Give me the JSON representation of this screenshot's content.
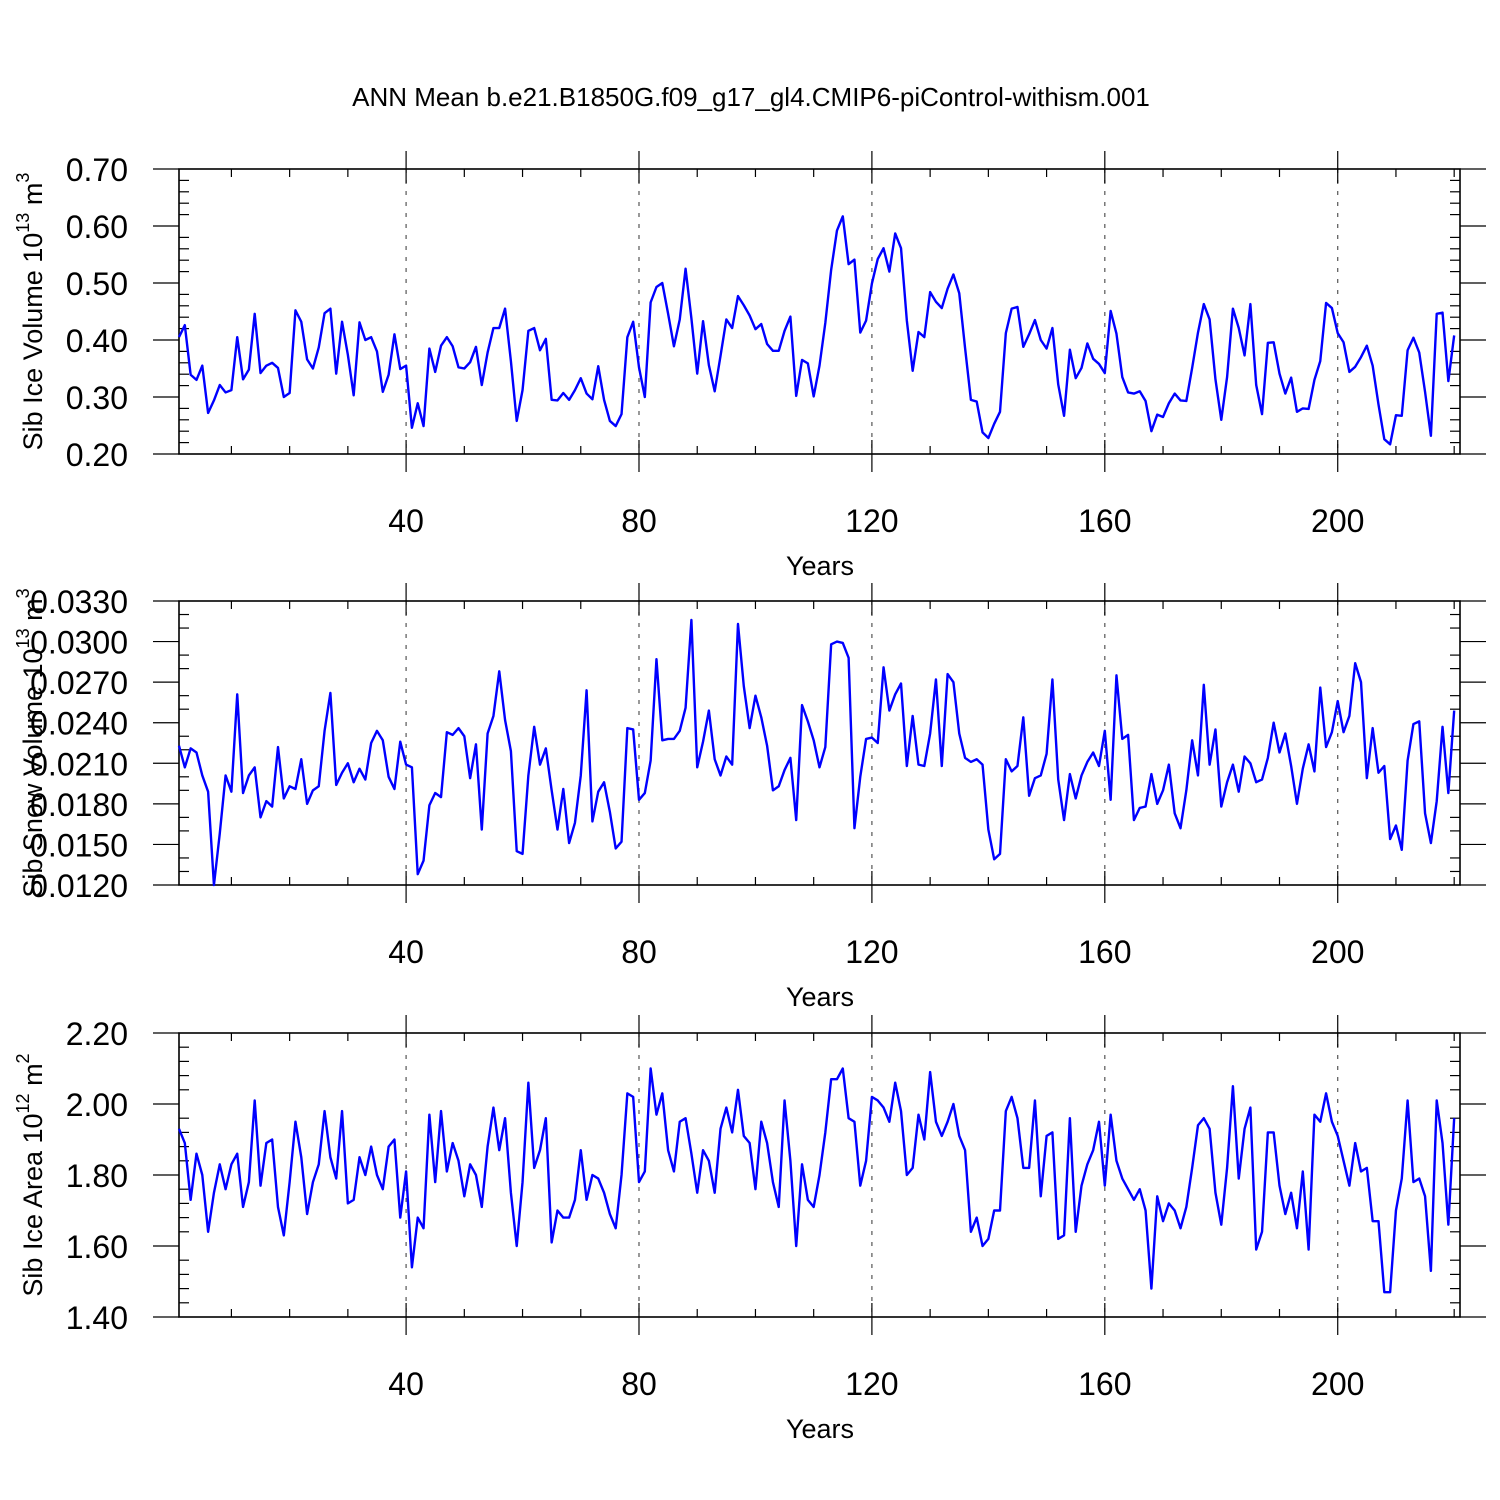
{
  "title": "ANN Mean b.e21.B1850G.f09_g17_gl4.CMIP6-piControl-withism.001",
  "chart_data": [
    {
      "type": "line",
      "ylabel": "Sib Ice Volume 10",
      "ylabel_exp": "13",
      "ylabel_unit": " m",
      "ylabel_unit_exp": "3",
      "xlabel": "Years",
      "xlim": [
        1,
        221
      ],
      "ylim": [
        0.2,
        0.7
      ],
      "xticks": [
        40,
        80,
        120,
        160,
        200
      ],
      "yticks": [
        "0.20",
        "0.30",
        "0.40",
        "0.50",
        "0.60",
        "0.70"
      ],
      "grid": "dashed vertical at labeled x ticks",
      "series": [
        {
          "color": "#0000ff",
          "values": [
            0.405,
            0.426,
            0.339,
            0.33,
            0.355,
            0.272,
            0.294,
            0.321,
            0.308,
            0.312,
            0.405,
            0.331,
            0.348,
            0.446,
            0.342,
            0.355,
            0.36,
            0.351,
            0.3,
            0.307,
            0.452,
            0.432,
            0.366,
            0.35,
            0.387,
            0.447,
            0.455,
            0.341,
            0.432,
            0.374,
            0.303,
            0.431,
            0.4,
            0.405,
            0.38,
            0.309,
            0.339,
            0.41,
            0.349,
            0.355,
            0.246,
            0.289,
            0.249,
            0.385,
            0.344,
            0.39,
            0.405,
            0.389,
            0.352,
            0.35,
            0.361,
            0.388,
            0.321,
            0.378,
            0.421,
            0.421,
            0.455,
            0.363,
            0.258,
            0.312,
            0.416,
            0.421,
            0.382,
            0.402,
            0.295,
            0.294,
            0.307,
            0.295,
            0.312,
            0.333,
            0.306,
            0.296,
            0.354,
            0.295,
            0.258,
            0.249,
            0.27,
            0.405,
            0.432,
            0.352,
            0.3,
            0.466,
            0.493,
            0.5,
            0.446,
            0.389,
            0.436,
            0.525,
            0.438,
            0.341,
            0.433,
            0.356,
            0.31,
            0.372,
            0.436,
            0.421,
            0.477,
            0.461,
            0.443,
            0.419,
            0.428,
            0.393,
            0.381,
            0.381,
            0.416,
            0.441,
            0.302,
            0.365,
            0.359,
            0.301,
            0.355,
            0.43,
            0.523,
            0.592,
            0.617,
            0.533,
            0.541,
            0.413,
            0.434,
            0.499,
            0.542,
            0.561,
            0.52,
            0.587,
            0.561,
            0.434,
            0.346,
            0.414,
            0.405,
            0.484,
            0.467,
            0.456,
            0.49,
            0.515,
            0.482,
            0.386,
            0.295,
            0.292,
            0.238,
            0.228,
            0.253,
            0.274,
            0.412,
            0.455,
            0.458,
            0.388,
            0.41,
            0.435,
            0.4,
            0.385,
            0.421,
            0.322,
            0.267,
            0.383,
            0.333,
            0.351,
            0.394,
            0.367,
            0.358,
            0.342,
            0.451,
            0.411,
            0.335,
            0.308,
            0.306,
            0.31,
            0.293,
            0.24,
            0.269,
            0.265,
            0.289,
            0.306,
            0.294,
            0.293,
            0.351,
            0.413,
            0.463,
            0.436,
            0.331,
            0.26,
            0.335,
            0.455,
            0.421,
            0.373,
            0.463,
            0.321,
            0.27,
            0.395,
            0.396,
            0.341,
            0.306,
            0.334,
            0.274,
            0.28,
            0.279,
            0.33,
            0.363,
            0.465,
            0.456,
            0.412,
            0.396,
            0.344,
            0.353,
            0.37,
            0.39,
            0.355,
            0.287,
            0.226,
            0.217,
            0.268,
            0.267,
            0.382,
            0.404,
            0.378,
            0.309,
            0.232,
            0.446,
            0.448,
            0.328,
            0.408
          ]
        }
      ]
    },
    {
      "type": "line",
      "ylabel": "Sib Snow Volume 10",
      "ylabel_exp": "13",
      "ylabel_unit": " m",
      "ylabel_unit_exp": "3",
      "xlabel": "Years",
      "xlim": [
        1,
        221
      ],
      "ylim": [
        0.012,
        0.033
      ],
      "xticks": [
        40,
        80,
        120,
        160,
        200
      ],
      "yticks": [
        "0.0120",
        "0.0150",
        "0.0180",
        "0.0210",
        "0.0240",
        "0.0270",
        "0.0300",
        "0.0330"
      ],
      "grid": "dashed vertical at labeled x ticks",
      "series": [
        {
          "color": "#0000ff",
          "values": [
            0.0223,
            0.0207,
            0.0221,
            0.0218,
            0.0201,
            0.0189,
            0.012,
            0.0158,
            0.0201,
            0.0189,
            0.0261,
            0.0188,
            0.0201,
            0.0207,
            0.017,
            0.0182,
            0.0178,
            0.0222,
            0.0184,
            0.0193,
            0.0191,
            0.0213,
            0.018,
            0.019,
            0.0193,
            0.0234,
            0.0262,
            0.0194,
            0.0203,
            0.021,
            0.0196,
            0.0206,
            0.0198,
            0.0225,
            0.0234,
            0.0227,
            0.02,
            0.0191,
            0.0226,
            0.0209,
            0.0207,
            0.0128,
            0.0138,
            0.0179,
            0.0188,
            0.0185,
            0.0233,
            0.0231,
            0.0236,
            0.023,
            0.0199,
            0.0224,
            0.0161,
            0.0232,
            0.0245,
            0.0278,
            0.0242,
            0.0219,
            0.0145,
            0.0143,
            0.0201,
            0.0237,
            0.0209,
            0.0221,
            0.019,
            0.0161,
            0.0191,
            0.0151,
            0.0166,
            0.0201,
            0.0264,
            0.0167,
            0.0189,
            0.0196,
            0.0174,
            0.0147,
            0.0152,
            0.0236,
            0.0235,
            0.0183,
            0.0188,
            0.0212,
            0.0287,
            0.0227,
            0.0228,
            0.0228,
            0.0234,
            0.0251,
            0.0316,
            0.0207,
            0.0226,
            0.0249,
            0.0213,
            0.0201,
            0.0215,
            0.0209,
            0.0313,
            0.0267,
            0.0236,
            0.026,
            0.0244,
            0.0223,
            0.019,
            0.0193,
            0.0205,
            0.0214,
            0.0168,
            0.0253,
            0.0241,
            0.0227,
            0.0207,
            0.0222,
            0.0298,
            0.03,
            0.0299,
            0.0288,
            0.0162,
            0.02,
            0.0228,
            0.0229,
            0.0225,
            0.0281,
            0.0249,
            0.0261,
            0.0269,
            0.0208,
            0.0245,
            0.0209,
            0.0208,
            0.0232,
            0.0272,
            0.0208,
            0.0276,
            0.027,
            0.0232,
            0.0214,
            0.0211,
            0.0213,
            0.0209,
            0.0161,
            0.0139,
            0.0143,
            0.0213,
            0.0204,
            0.0208,
            0.0244,
            0.0186,
            0.0199,
            0.0201,
            0.0217,
            0.0272,
            0.0198,
            0.0168,
            0.0202,
            0.0184,
            0.0201,
            0.0211,
            0.0218,
            0.0208,
            0.0234,
            0.0183,
            0.0275,
            0.0228,
            0.0231,
            0.0168,
            0.0177,
            0.0178,
            0.0202,
            0.018,
            0.019,
            0.0209,
            0.0173,
            0.0162,
            0.019,
            0.0227,
            0.0201,
            0.0268,
            0.0209,
            0.0235,
            0.0178,
            0.0196,
            0.0209,
            0.0189,
            0.0215,
            0.021,
            0.0196,
            0.0198,
            0.0214,
            0.024,
            0.0218,
            0.0232,
            0.0208,
            0.018,
            0.0206,
            0.0224,
            0.0204,
            0.0266,
            0.0222,
            0.0233,
            0.0256,
            0.0233,
            0.0245,
            0.0284,
            0.027,
            0.0199,
            0.0236,
            0.0203,
            0.0208,
            0.0154,
            0.0164,
            0.0146,
            0.0212,
            0.0239,
            0.0241,
            0.0173,
            0.0151,
            0.0182,
            0.0237,
            0.0188,
            0.0249
          ]
        }
      ]
    },
    {
      "type": "line",
      "ylabel": "Sib Ice Area 10",
      "ylabel_exp": "12",
      "ylabel_unit": " m",
      "ylabel_unit_exp": "2",
      "xlabel": "Years",
      "xlim": [
        1,
        221
      ],
      "ylim": [
        1.4,
        2.2
      ],
      "xticks": [
        40,
        80,
        120,
        160,
        200
      ],
      "yticks": [
        "1.40",
        "1.60",
        "1.80",
        "2.00",
        "2.20"
      ],
      "grid": "dashed vertical at labeled x ticks",
      "series": [
        {
          "color": "#0000ff",
          "values": [
            1.93,
            1.89,
            1.73,
            1.86,
            1.8,
            1.64,
            1.75,
            1.83,
            1.76,
            1.83,
            1.86,
            1.71,
            1.78,
            2.01,
            1.77,
            1.89,
            1.9,
            1.71,
            1.63,
            1.78,
            1.95,
            1.85,
            1.69,
            1.78,
            1.83,
            1.98,
            1.85,
            1.79,
            1.98,
            1.72,
            1.73,
            1.85,
            1.8,
            1.88,
            1.8,
            1.76,
            1.88,
            1.9,
            1.68,
            1.81,
            1.54,
            1.68,
            1.65,
            1.97,
            1.78,
            1.98,
            1.81,
            1.89,
            1.84,
            1.74,
            1.83,
            1.8,
            1.71,
            1.88,
            1.99,
            1.87,
            1.96,
            1.75,
            1.6,
            1.78,
            2.06,
            1.82,
            1.87,
            1.96,
            1.61,
            1.7,
            1.68,
            1.68,
            1.73,
            1.87,
            1.73,
            1.8,
            1.79,
            1.75,
            1.69,
            1.65,
            1.8,
            2.03,
            2.02,
            1.78,
            1.81,
            2.1,
            1.97,
            2.03,
            1.87,
            1.81,
            1.95,
            1.96,
            1.86,
            1.75,
            1.87,
            1.84,
            1.75,
            1.93,
            1.99,
            1.92,
            2.04,
            1.91,
            1.89,
            1.76,
            1.95,
            1.89,
            1.78,
            1.71,
            2.01,
            1.84,
            1.6,
            1.83,
            1.73,
            1.71,
            1.8,
            1.92,
            2.07,
            2.07,
            2.1,
            1.96,
            1.95,
            1.77,
            1.84,
            2.02,
            2.01,
            1.99,
            1.95,
            2.06,
            1.98,
            1.8,
            1.82,
            1.97,
            1.9,
            2.09,
            1.95,
            1.91,
            1.95,
            2.0,
            1.91,
            1.87,
            1.64,
            1.68,
            1.6,
            1.62,
            1.7,
            1.7,
            1.98,
            2.02,
            1.96,
            1.82,
            1.82,
            2.01,
            1.74,
            1.91,
            1.92,
            1.62,
            1.63,
            1.96,
            1.64,
            1.77,
            1.83,
            1.87,
            1.95,
            1.77,
            1.97,
            1.84,
            1.79,
            1.76,
            1.73,
            1.76,
            1.7,
            1.48,
            1.74,
            1.67,
            1.72,
            1.7,
            1.65,
            1.71,
            1.82,
            1.94,
            1.96,
            1.93,
            1.75,
            1.66,
            1.82,
            2.05,
            1.79,
            1.93,
            1.99,
            1.59,
            1.64,
            1.92,
            1.92,
            1.77,
            1.69,
            1.75,
            1.65,
            1.81,
            1.59,
            1.97,
            1.95,
            2.03,
            1.95,
            1.91,
            1.84,
            1.77,
            1.89,
            1.81,
            1.82,
            1.67,
            1.67,
            1.47,
            1.47,
            1.7,
            1.79,
            2.01,
            1.78,
            1.79,
            1.74,
            1.53,
            2.01,
            1.89,
            1.66,
            1.96
          ]
        }
      ]
    }
  ]
}
